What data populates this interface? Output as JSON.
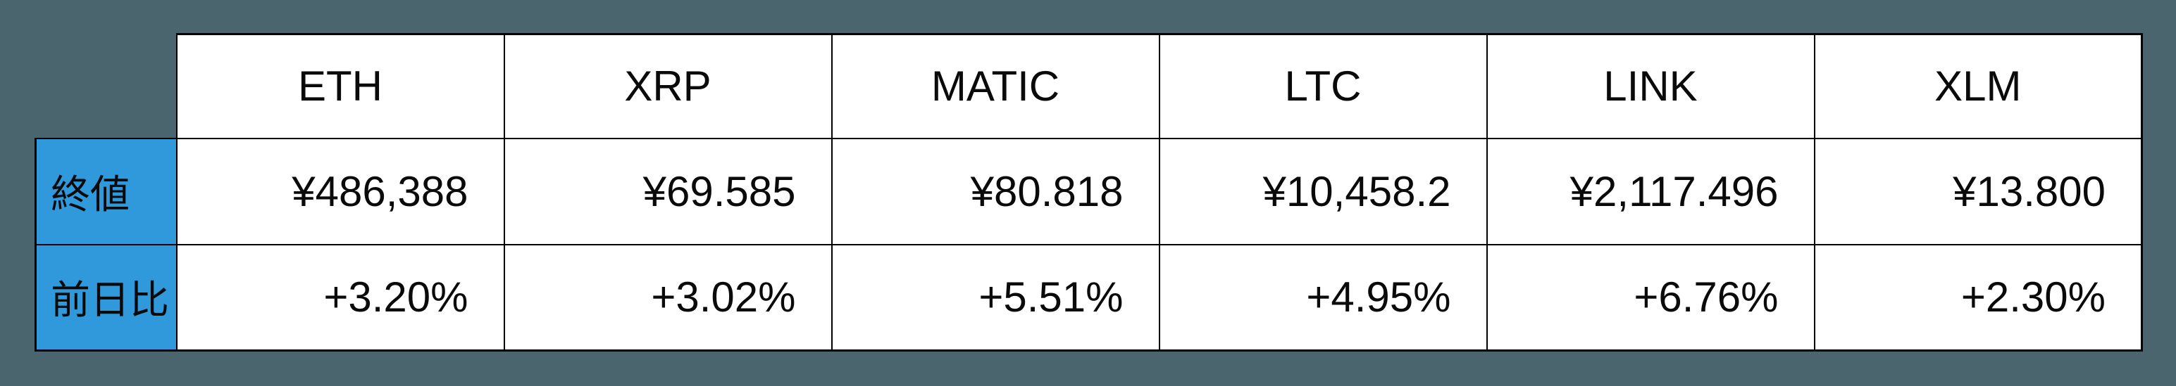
{
  "colors": {
    "background": "#4b656f",
    "accent": "#3099db",
    "cell": "#ffffff",
    "line": "#000000",
    "ink": "#0a0a0a"
  },
  "table": {
    "columns": [
      "ETH",
      "XRP",
      "MATIC",
      "LTC",
      "LINK",
      "XLM"
    ],
    "rows": [
      {
        "label": "終値",
        "values": [
          "¥486,388",
          "¥69.585",
          "¥80.818",
          "¥10,458.2",
          "¥2,117.496",
          "¥13.800"
        ]
      },
      {
        "label": "前日比",
        "values": [
          "+3.20%",
          "+3.02%",
          "+5.51%",
          "+4.95%",
          "+6.76%",
          "+2.30%"
        ]
      }
    ]
  },
  "chart_data": {
    "type": "table",
    "columns": [
      "ETH",
      "XRP",
      "MATIC",
      "LTC",
      "LINK",
      "XLM"
    ],
    "row_labels": [
      "終値",
      "前日比"
    ],
    "rows": [
      [
        "¥486,388",
        "¥69.585",
        "¥80.818",
        "¥10,458.2",
        "¥2,117.496",
        "¥13.800"
      ],
      [
        "+3.20%",
        "+3.02%",
        "+5.51%",
        "+4.95%",
        "+6.76%",
        "+2.30%"
      ]
    ],
    "close_values_jpy": [
      486388,
      69.585,
      80.818,
      10458.2,
      2117.496,
      13.8
    ],
    "day_change_percent": [
      3.2,
      3.02,
      5.51,
      4.95,
      6.76,
      2.3
    ],
    "currency": "JPY",
    "legend_position": "none",
    "grid": true
  }
}
